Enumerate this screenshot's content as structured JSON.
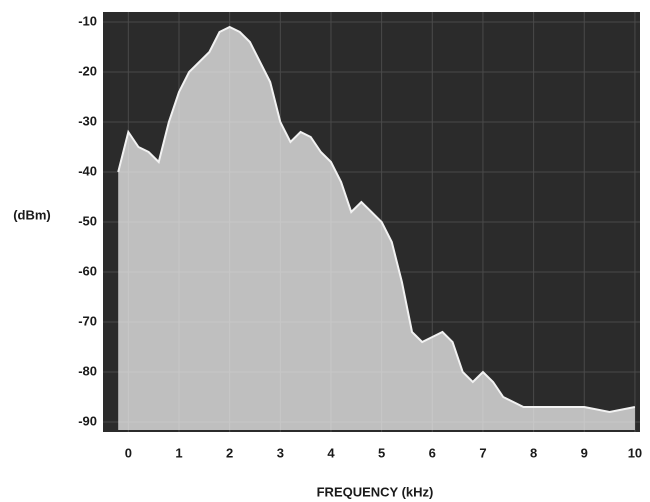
{
  "chart_data": {
    "type": "area",
    "x": [
      -0.2,
      0,
      0.2,
      0.4,
      0.6,
      0.8,
      1.0,
      1.2,
      1.4,
      1.6,
      1.8,
      2.0,
      2.2,
      2.4,
      2.6,
      2.8,
      3.0,
      3.2,
      3.4,
      3.6,
      3.8,
      4.0,
      4.2,
      4.4,
      4.6,
      4.8,
      5.0,
      5.2,
      5.4,
      5.6,
      5.8,
      6.0,
      6.2,
      6.4,
      6.6,
      6.8,
      7.0,
      7.2,
      7.4,
      7.6,
      7.8,
      8.0,
      8.5,
      9.0,
      9.5,
      10.0
    ],
    "values": [
      -40,
      -32,
      -35,
      -36,
      -38,
      -30,
      -24,
      -20,
      -18,
      -16,
      -12,
      -11,
      -12,
      -14,
      -18,
      -22,
      -30,
      -34,
      -32,
      -33,
      -36,
      -38,
      -42,
      -48,
      -46,
      -48,
      -50,
      -54,
      -62,
      -72,
      -74,
      -73,
      -72,
      -74,
      -80,
      -82,
      -80,
      -82,
      -85,
      -86,
      -87,
      -87,
      -87,
      -87,
      -88,
      -87
    ],
    "color": "#f2f2f2",
    "xlabel": "FREQUENCY (kHz)",
    "ylabel": "(dBm)",
    "xlim": [
      -0.5,
      10.1
    ],
    "ylim": [
      -92,
      -8
    ],
    "xticks": [
      0,
      1,
      2,
      3,
      4,
      5,
      6,
      7,
      8,
      9,
      10
    ],
    "yticks": [
      -10,
      -20,
      -30,
      -40,
      -50,
      -60,
      -70,
      -80,
      -90
    ],
    "grid": true
  }
}
